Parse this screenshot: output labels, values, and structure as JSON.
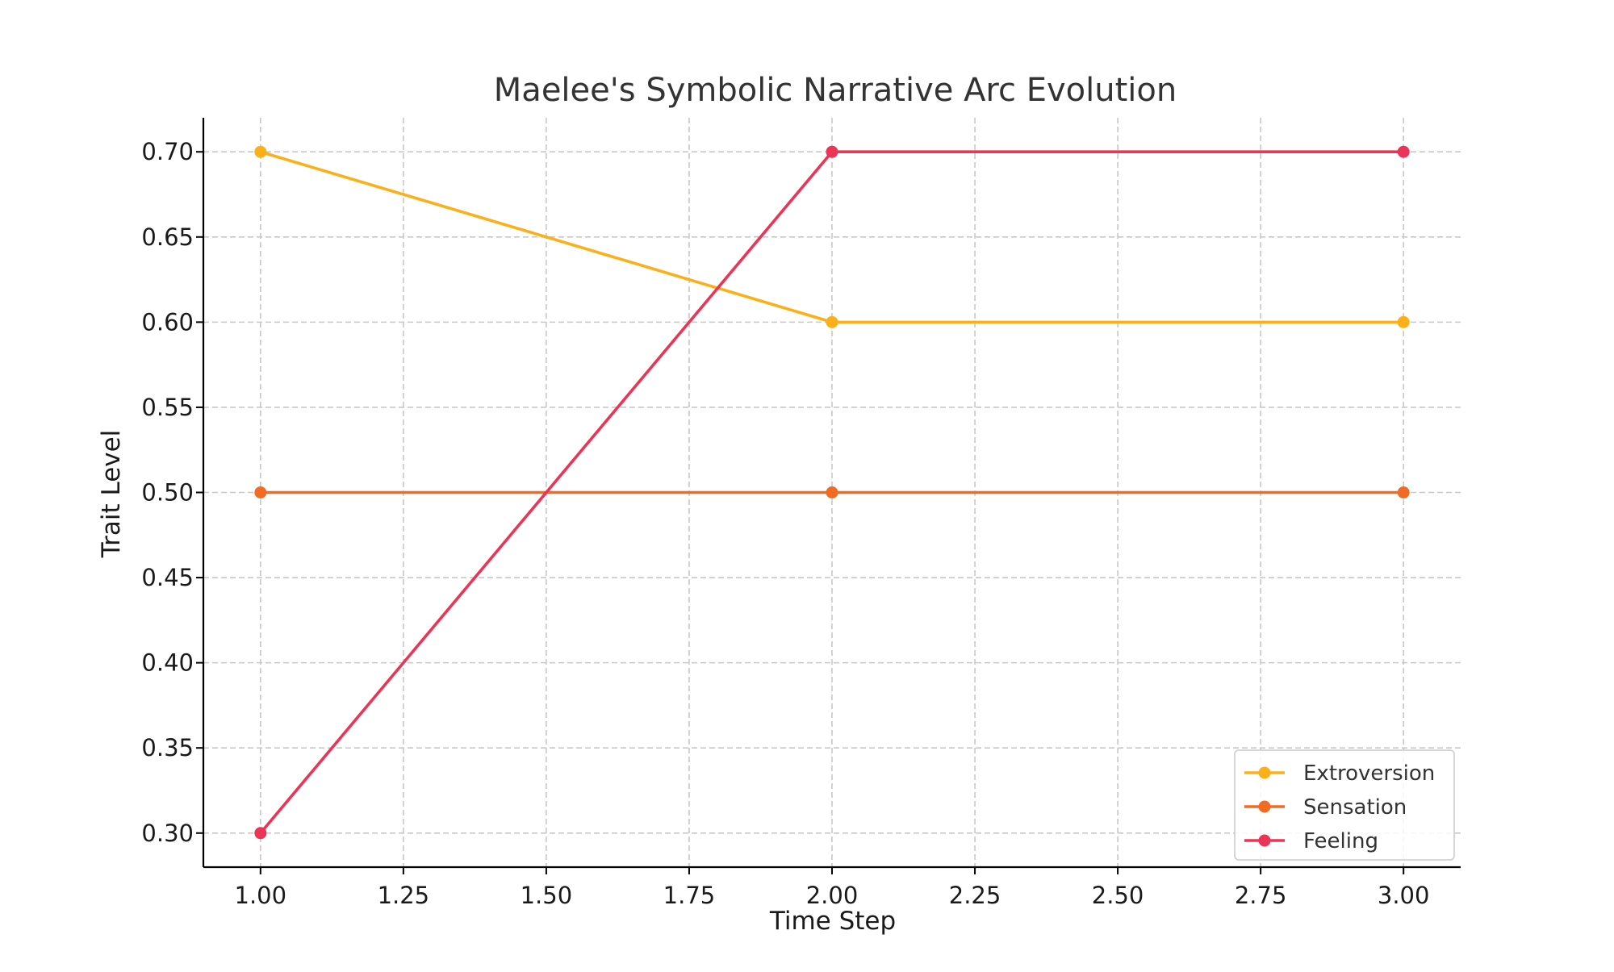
{
  "chart_data": {
    "type": "line",
    "title": "Maelee's Symbolic Narrative Arc Evolution",
    "xlabel": "Time Step",
    "ylabel": "Trait Level",
    "x": [
      1,
      2,
      3
    ],
    "xlim": [
      0.9,
      3.1
    ],
    "ylim": [
      0.28,
      0.72
    ],
    "xticks": [
      "1.00",
      "1.25",
      "1.50",
      "1.75",
      "2.00",
      "2.25",
      "2.50",
      "2.75",
      "3.00"
    ],
    "yticks": [
      "0.30",
      "0.35",
      "0.40",
      "0.45",
      "0.50",
      "0.55",
      "0.60",
      "0.65",
      "0.70"
    ],
    "grid": true,
    "legend_position": "bottom-right",
    "series": [
      {
        "name": "Extroversion",
        "color": "#FBB01A",
        "values": [
          0.7,
          0.6,
          0.6
        ]
      },
      {
        "name": "Sensation",
        "color": "#F26B22",
        "values": [
          0.5,
          0.5,
          0.5
        ]
      },
      {
        "name": "Feeling",
        "color": "#EC3456",
        "values": [
          0.3,
          0.7,
          0.7
        ]
      }
    ]
  }
}
